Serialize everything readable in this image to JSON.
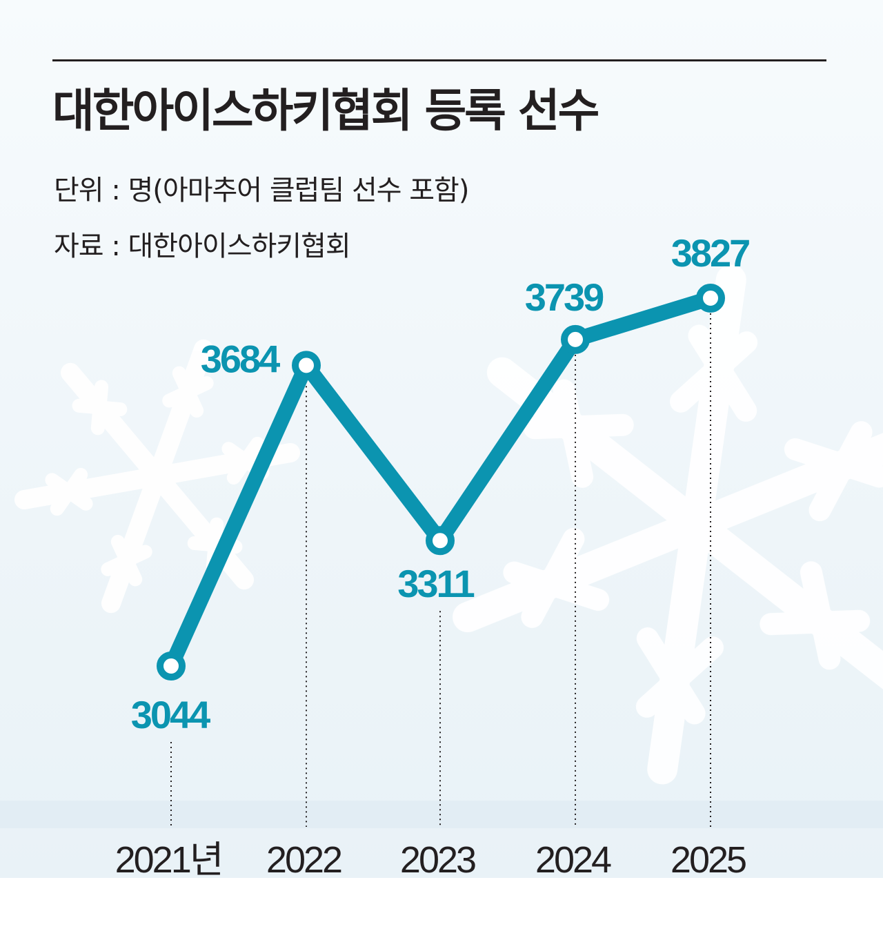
{
  "colors": {
    "line": "#0b94b0",
    "text": "#231f20",
    "background": "#f3f8fb"
  },
  "title": "대한아이스하키협회 등록 선수",
  "unit_note": "단위 : 명(아마추어 클럽팀 선수 포함)",
  "source_note": "자료 : 대한아이스하키협회",
  "chart_data": {
    "type": "line",
    "title": "대한아이스하키협회 등록 선수",
    "categories": [
      "2021년",
      "2022",
      "2023",
      "2024",
      "2025"
    ],
    "values": [
      3044,
      3684,
      3311,
      3739,
      3827
    ],
    "data_labels": [
      "3044",
      "3684",
      "3311",
      "3739",
      "3827"
    ],
    "ylim": [
      2900,
      3900
    ],
    "grid": false,
    "drop_lines": "dotted",
    "legend": "none"
  }
}
